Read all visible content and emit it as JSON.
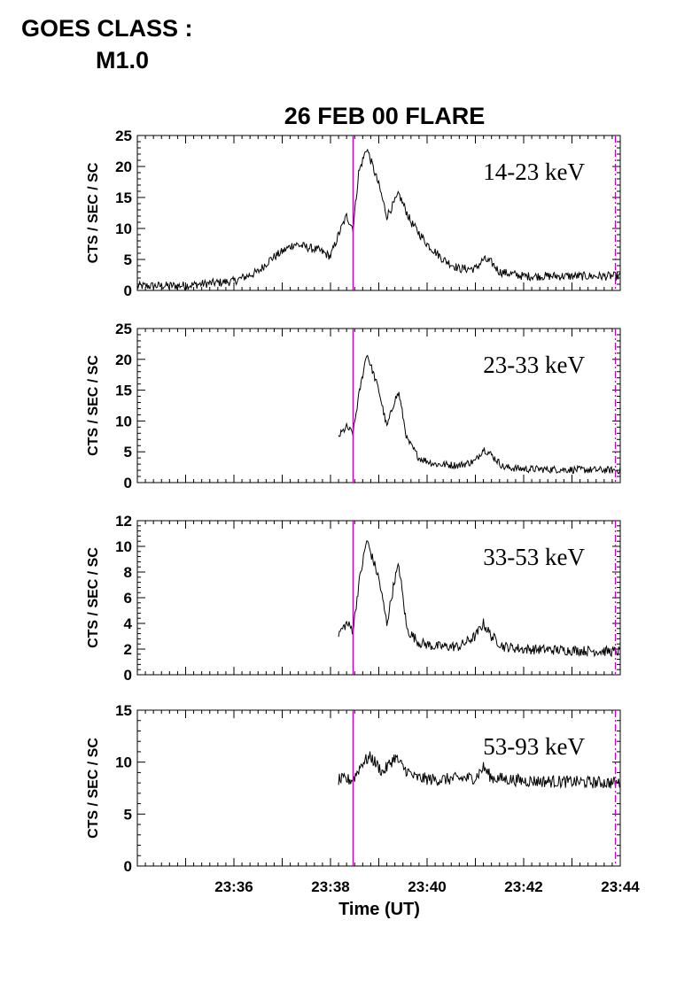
{
  "header": {
    "goes_label": "GOES CLASS :",
    "goes_value": "M1.0"
  },
  "colors": {
    "marker": "#c000c0",
    "trace": "#000000"
  },
  "chart_data": {
    "type": "line",
    "title": "26 FEB 00 FLARE",
    "xlabel": "Time (UT)",
    "xlim": [
      "23:34:00",
      "23:44:00"
    ],
    "x_ticks": [
      "23:36",
      "23:38",
      "23:40",
      "23:42",
      "23:44"
    ],
    "markers": [
      {
        "x": "23:38:28",
        "style": "solid"
      },
      {
        "x": "23:43:54",
        "style": "dash-dot"
      }
    ],
    "panels": [
      {
        "band": "14-23 keV",
        "ylabel": "CTS / SEC / SC",
        "ylim": [
          0,
          25
        ],
        "y_ticks": [
          0,
          5,
          10,
          15,
          20,
          25
        ],
        "noise": 0.7,
        "series": {
          "x": [
            "23:34:00",
            "23:35:00",
            "23:36:00",
            "23:36:30",
            "23:36:45",
            "23:37:15",
            "23:37:45",
            "23:38:00",
            "23:38:10",
            "23:38:20",
            "23:38:28",
            "23:38:35",
            "23:38:45",
            "23:39:00",
            "23:39:10",
            "23:39:25",
            "23:39:40",
            "23:40:00",
            "23:40:20",
            "23:40:40",
            "23:41:00",
            "23:41:10",
            "23:41:20",
            "23:41:30",
            "23:42:00",
            "23:44:00"
          ],
          "y": [
            0.7,
            0.8,
            1.5,
            3.0,
            5.0,
            7.5,
            6.5,
            5.5,
            9.0,
            12.0,
            10.0,
            19.0,
            23.0,
            17.0,
            12.0,
            15.5,
            11.0,
            7.5,
            5.0,
            3.5,
            3.5,
            5.0,
            4.5,
            3.0,
            2.3,
            2.3
          ]
        }
      },
      {
        "band": "23-33 keV",
        "ylabel": "CTS / SEC / SC",
        "ylim": [
          0,
          25
        ],
        "y_ticks": [
          0,
          5,
          10,
          15,
          20,
          25
        ],
        "noise": 0.6,
        "series": {
          "x": [
            "23:38:10",
            "23:38:20",
            "23:38:28",
            "23:38:35",
            "23:38:45",
            "23:39:00",
            "23:39:10",
            "23:39:20",
            "23:39:25",
            "23:39:35",
            "23:39:50",
            "23:40:10",
            "23:40:40",
            "23:41:00",
            "23:41:10",
            "23:41:20",
            "23:41:35",
            "23:42:00",
            "23:44:00"
          ],
          "y": [
            7.5,
            9.0,
            8.0,
            14.0,
            21.0,
            15.0,
            9.0,
            13.5,
            14.5,
            7.0,
            4.0,
            3.0,
            2.8,
            3.5,
            5.5,
            4.5,
            2.5,
            2.2,
            2.0
          ]
        }
      },
      {
        "band": "33-53 keV",
        "ylabel": "CTS / SEC / SC",
        "ylim": [
          0,
          12
        ],
        "y_ticks": [
          0,
          2,
          4,
          6,
          8,
          10,
          12
        ],
        "noise": 0.4,
        "series": {
          "x": [
            "23:38:10",
            "23:38:20",
            "23:38:28",
            "23:38:35",
            "23:38:45",
            "23:39:00",
            "23:39:10",
            "23:39:20",
            "23:39:25",
            "23:39:35",
            "23:39:50",
            "23:40:10",
            "23:40:40",
            "23:41:00",
            "23:41:10",
            "23:41:20",
            "23:41:35",
            "23:42:00",
            "23:44:00"
          ],
          "y": [
            3.2,
            4.0,
            3.5,
            7.0,
            10.5,
            7.5,
            4.0,
            7.5,
            8.5,
            3.5,
            2.5,
            2.2,
            2.2,
            3.0,
            4.0,
            3.0,
            2.2,
            2.0,
            1.8
          ]
        }
      },
      {
        "band": "53-93 keV",
        "ylabel": "CTS / SEC / SC",
        "ylim": [
          0,
          15
        ],
        "y_ticks": [
          0,
          5,
          10,
          15
        ],
        "noise": 0.6,
        "series": {
          "x": [
            "23:38:10",
            "23:38:28",
            "23:38:40",
            "23:38:50",
            "23:39:05",
            "23:39:20",
            "23:39:30",
            "23:39:45",
            "23:40:10",
            "23:41:00",
            "23:41:10",
            "23:41:20",
            "23:42:00",
            "23:44:00"
          ],
          "y": [
            8.3,
            8.3,
            10.0,
            10.5,
            9.0,
            10.5,
            9.5,
            8.5,
            8.3,
            8.5,
            9.5,
            8.5,
            8.2,
            8.0
          ]
        }
      }
    ]
  }
}
